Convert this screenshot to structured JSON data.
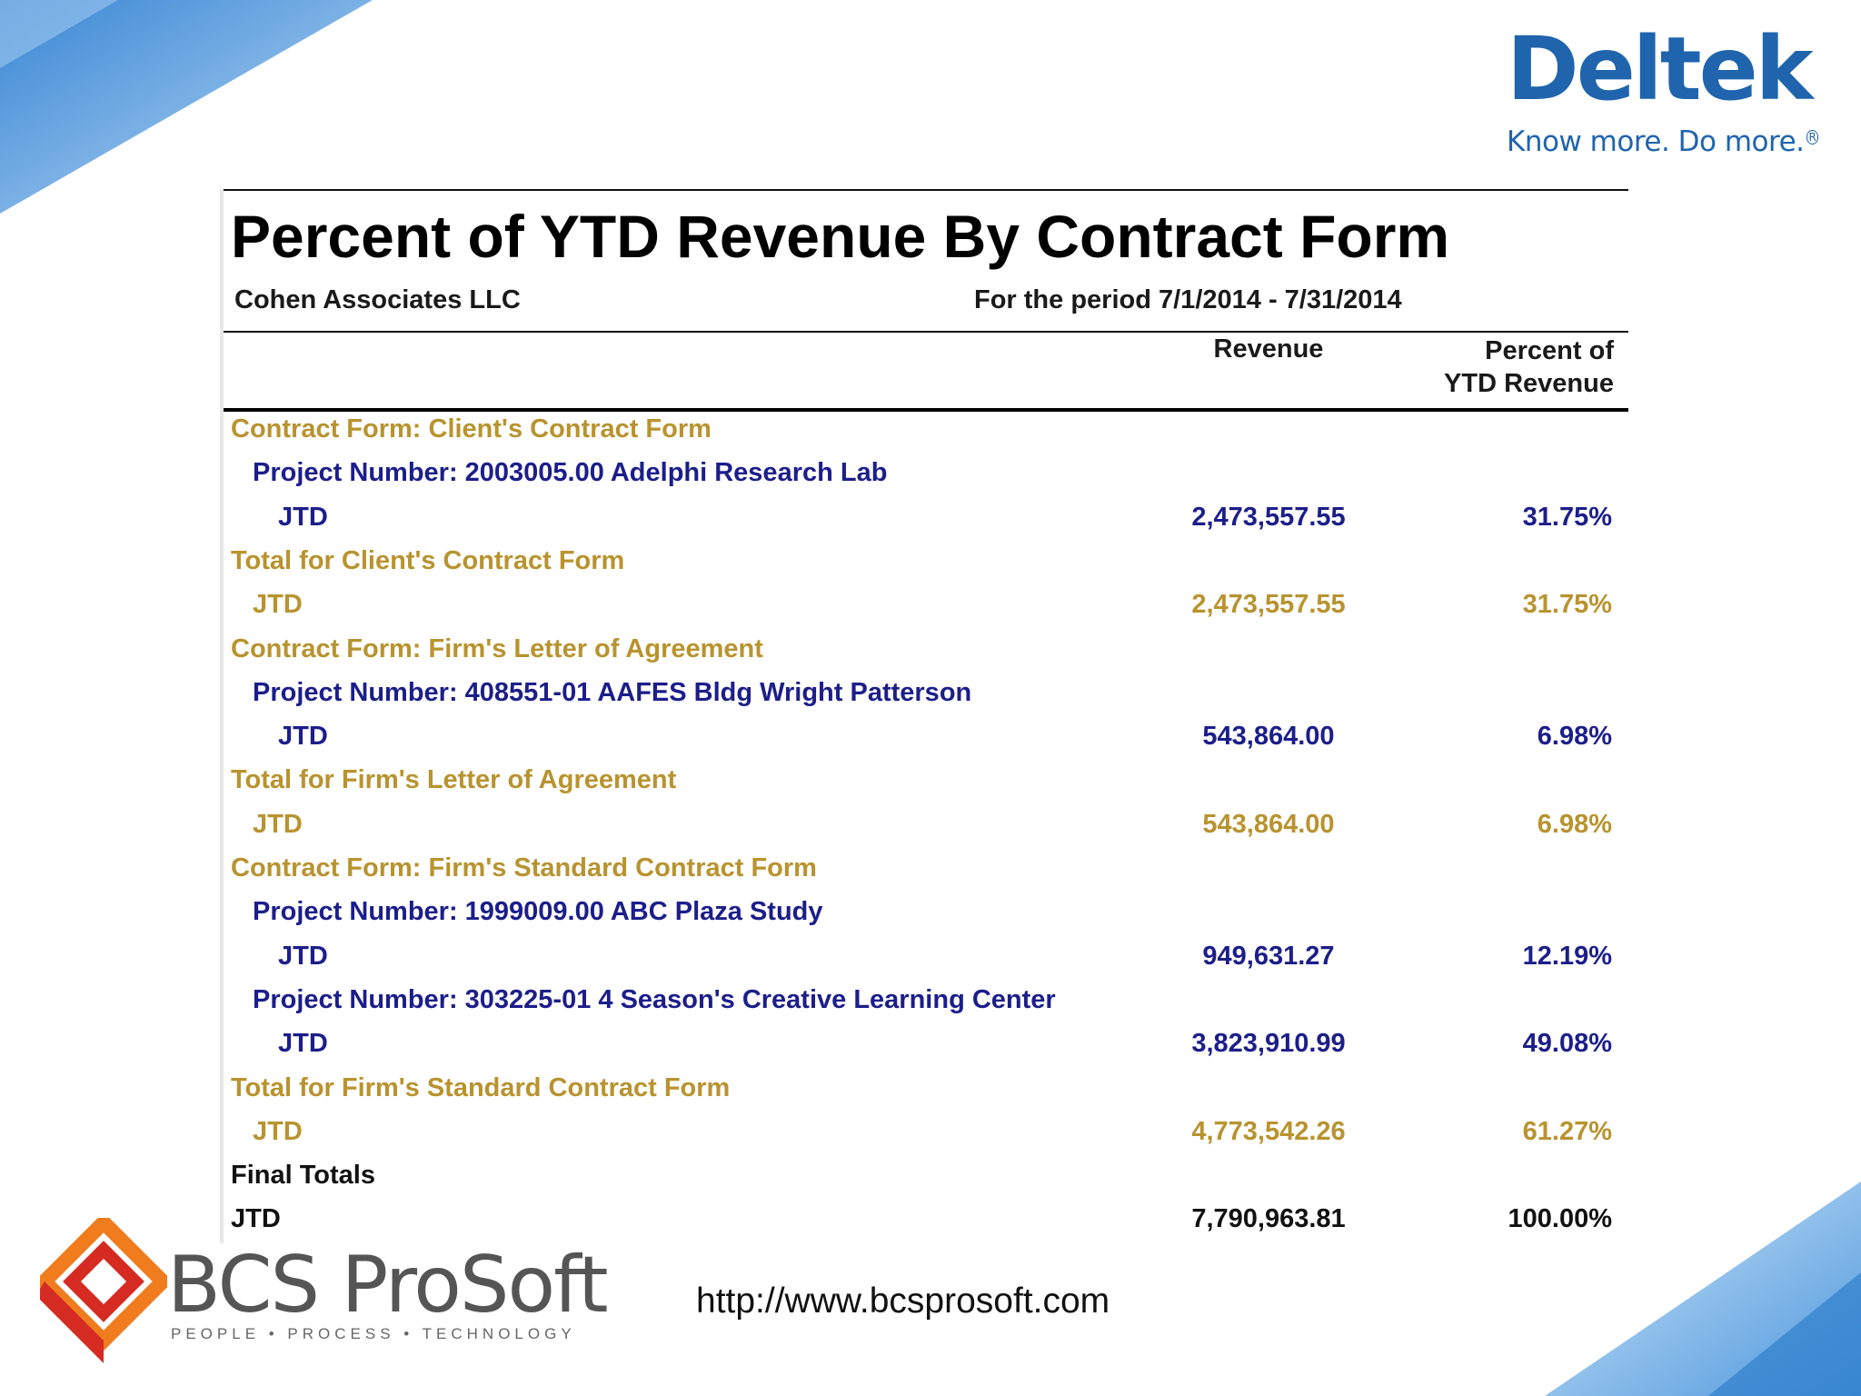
{
  "brand": {
    "deltek_name": "Deltek",
    "deltek_tagline": "Know more. Do more.",
    "deltek_color": "#1f64ad",
    "bcs_name": "BCS ProSoft",
    "bcs_tagline": "PEOPLE • PROCESS • TECHNOLOGY",
    "url": "http://www.bcsprosoft.com"
  },
  "report": {
    "title": "Percent of YTD Revenue By Contract Form",
    "company": "Cohen Associates LLC",
    "period": "For the period 7/1/2014 - 7/31/2014",
    "col_revenue": "Revenue",
    "col_percent_line1": "Percent of",
    "col_percent_line2": "YTD Revenue",
    "rows": [
      {
        "label": "Contract Form: Client's Contract Form",
        "revenue": "",
        "percent": "",
        "style": "gold",
        "indent": 0
      },
      {
        "label": "Project Number: 2003005.00 Adelphi Research Lab",
        "revenue": "",
        "percent": "",
        "style": "navy",
        "indent": 1
      },
      {
        "label": "JTD",
        "revenue": "2,473,557.55",
        "percent": "31.75%",
        "style": "navy",
        "indent": 2
      },
      {
        "label": "Total for Client's Contract Form",
        "revenue": "",
        "percent": "",
        "style": "gold",
        "indent": 0
      },
      {
        "label": "JTD",
        "revenue": "2,473,557.55",
        "percent": "31.75%",
        "style": "gold",
        "indent": 1
      },
      {
        "label": "Contract Form: Firm's Letter of Agreement",
        "revenue": "",
        "percent": "",
        "style": "gold",
        "indent": 0
      },
      {
        "label": "Project Number: 408551-01 AAFES Bldg Wright Patterson",
        "revenue": "",
        "percent": "",
        "style": "navy",
        "indent": 1
      },
      {
        "label": "JTD",
        "revenue": "543,864.00",
        "percent": "6.98%",
        "style": "navy",
        "indent": 2
      },
      {
        "label": "Total for Firm's Letter of Agreement",
        "revenue": "",
        "percent": "",
        "style": "gold",
        "indent": 0
      },
      {
        "label": "JTD",
        "revenue": "543,864.00",
        "percent": "6.98%",
        "style": "gold",
        "indent": 1
      },
      {
        "label": "Contract Form: Firm's Standard Contract Form",
        "revenue": "",
        "percent": "",
        "style": "gold",
        "indent": 0
      },
      {
        "label": "Project Number: 1999009.00 ABC Plaza Study",
        "revenue": "",
        "percent": "",
        "style": "navy",
        "indent": 1
      },
      {
        "label": "JTD",
        "revenue": "949,631.27",
        "percent": "12.19%",
        "style": "navy",
        "indent": 2
      },
      {
        "label": "Project Number: 303225-01 4 Season's Creative Learning Center",
        "revenue": "",
        "percent": "",
        "style": "navy",
        "indent": 1
      },
      {
        "label": "JTD",
        "revenue": "3,823,910.99",
        "percent": "49.08%",
        "style": "navy",
        "indent": 2
      },
      {
        "label": "Total for Firm's Standard Contract Form",
        "revenue": "",
        "percent": "",
        "style": "gold",
        "indent": 0
      },
      {
        "label": "JTD",
        "revenue": "4,773,542.26",
        "percent": "61.27%",
        "style": "gold",
        "indent": 1
      },
      {
        "label": "Final Totals",
        "revenue": "",
        "percent": "",
        "style": "black",
        "indent": 0
      },
      {
        "label": "JTD",
        "revenue": "7,790,963.81",
        "percent": "100.00%",
        "style": "black",
        "indent": 0
      }
    ]
  },
  "colors": {
    "gold": "#b8932f",
    "navy": "#1c1e8a",
    "black": "#111111",
    "bcs_orange": "#f07c1e",
    "bcs_red": "#d62b22",
    "accent_blue": "#3b8fd9"
  }
}
